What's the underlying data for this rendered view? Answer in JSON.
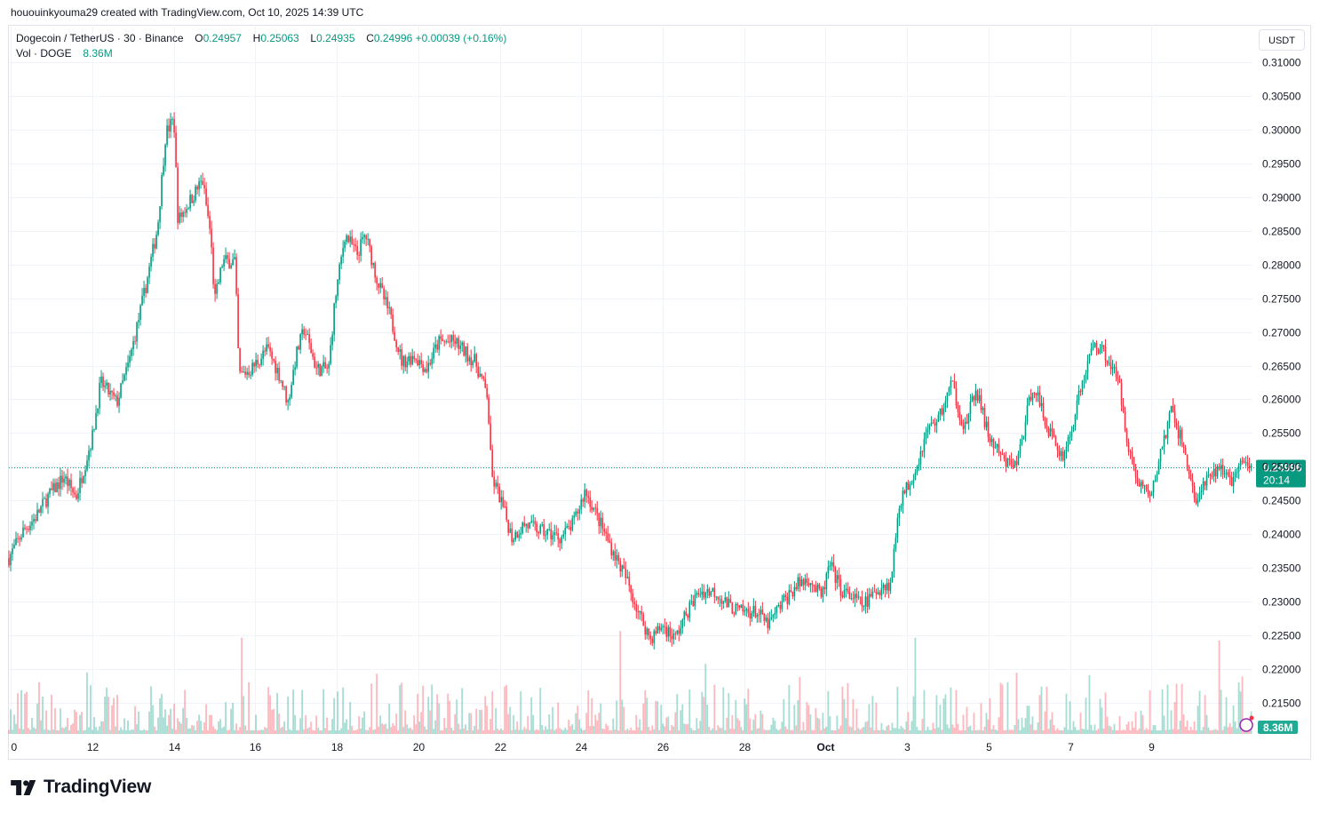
{
  "header": {
    "credit": "hououinkyouma29 created with TradingView.com, Oct 10, 2025 14:39 UTC"
  },
  "legend": {
    "symbol": "Dogecoin / TetherUS · 30 · Binance",
    "o_label": "O",
    "o_value": "0.24957",
    "h_label": "H",
    "h_value": "0.25063",
    "l_label": "L",
    "l_value": "0.24935",
    "c_label": "C",
    "c_value": "0.24996",
    "change": "+0.00039 (+0.16%)",
    "vol_label": "Vol · DOGE",
    "vol_value": "8.36M"
  },
  "toolbar": {
    "currency_label": "USDT"
  },
  "footer": {
    "brand": "TradingView"
  },
  "colors": {
    "up": "#089981",
    "down": "#f23645",
    "grid": "#f0f3fa",
    "axis_text": "#131722",
    "price_line": "#089981",
    "volume_badge": "#22ab94",
    "alert": "#9c27b0"
  },
  "chart_data": {
    "type": "candlestick",
    "ylim": [
      0.2125,
      0.3125
    ],
    "y_ticks": [
      "0.31000",
      "0.30500",
      "0.30000",
      "0.29500",
      "0.29000",
      "0.28500",
      "0.28000",
      "0.27500",
      "0.27000",
      "0.26500",
      "0.26000",
      "0.25500",
      "0.25000",
      "0.24500",
      "0.24000",
      "0.23500",
      "0.23000",
      "0.22500",
      "0.22000",
      "0.21500"
    ],
    "y_tick_values": [
      0.31,
      0.305,
      0.3,
      0.295,
      0.29,
      0.285,
      0.28,
      0.275,
      0.27,
      0.265,
      0.26,
      0.255,
      0.25,
      0.245,
      0.24,
      0.235,
      0.23,
      0.225,
      0.22,
      0.215
    ],
    "x_ticks": [
      "0",
      "12",
      "14",
      "16",
      "18",
      "20",
      "22",
      "24",
      "26",
      "28",
      "Oct",
      "3",
      "5",
      "7",
      "9"
    ],
    "x_tick_days": [
      10,
      12,
      14,
      16,
      18,
      20,
      22,
      24,
      26,
      28,
      30,
      32,
      34,
      36,
      38
    ],
    "x_range_days": [
      9.95,
      39.5
    ],
    "grid": true,
    "last_price": 0.24996,
    "last_price_label": "0.24996",
    "countdown_label": "20:14",
    "volume_label": "8.36M",
    "price_path": [
      [
        9.95,
        0.2365
      ],
      [
        10.3,
        0.2405
      ],
      [
        10.6,
        0.2425
      ],
      [
        10.9,
        0.2455
      ],
      [
        11.3,
        0.2485
      ],
      [
        11.6,
        0.2455
      ],
      [
        12.0,
        0.2545
      ],
      [
        12.2,
        0.2625
      ],
      [
        12.6,
        0.2595
      ],
      [
        12.9,
        0.2655
      ],
      [
        13.3,
        0.2765
      ],
      [
        13.6,
        0.2855
      ],
      [
        13.8,
        0.2995
      ],
      [
        14.0,
        0.3015
      ],
      [
        14.1,
        0.2865
      ],
      [
        14.4,
        0.2895
      ],
      [
        14.7,
        0.2925
      ],
      [
        14.9,
        0.2845
      ],
      [
        15.0,
        0.2745
      ],
      [
        15.2,
        0.2805
      ],
      [
        15.5,
        0.2805
      ],
      [
        15.6,
        0.2635
      ],
      [
        15.9,
        0.2645
      ],
      [
        16.3,
        0.2675
      ],
      [
        16.6,
        0.2635
      ],
      [
        16.8,
        0.2595
      ],
      [
        17.0,
        0.2665
      ],
      [
        17.2,
        0.2705
      ],
      [
        17.5,
        0.2645
      ],
      [
        17.8,
        0.2645
      ],
      [
        17.95,
        0.2745
      ],
      [
        18.2,
        0.2845
      ],
      [
        18.5,
        0.2815
      ],
      [
        18.7,
        0.2845
      ],
      [
        19.0,
        0.2775
      ],
      [
        19.3,
        0.2725
      ],
      [
        19.6,
        0.2655
      ],
      [
        19.9,
        0.2665
      ],
      [
        20.2,
        0.2645
      ],
      [
        20.5,
        0.2685
      ],
      [
        20.9,
        0.2685
      ],
      [
        21.4,
        0.2655
      ],
      [
        21.7,
        0.2605
      ],
      [
        21.8,
        0.2485
      ],
      [
        22.0,
        0.2455
      ],
      [
        22.3,
        0.2395
      ],
      [
        22.6,
        0.2415
      ],
      [
        23.0,
        0.2405
      ],
      [
        23.5,
        0.2395
      ],
      [
        23.8,
        0.2415
      ],
      [
        24.1,
        0.2465
      ],
      [
        24.4,
        0.2425
      ],
      [
        24.7,
        0.2385
      ],
      [
        25.1,
        0.2335
      ],
      [
        25.4,
        0.2285
      ],
      [
        25.7,
        0.2245
      ],
      [
        26.0,
        0.2265
      ],
      [
        26.3,
        0.2245
      ],
      [
        26.6,
        0.2285
      ],
      [
        26.9,
        0.2315
      ],
      [
        27.3,
        0.2315
      ],
      [
        27.6,
        0.2295
      ],
      [
        27.9,
        0.2285
      ],
      [
        28.3,
        0.2285
      ],
      [
        28.6,
        0.2265
      ],
      [
        28.9,
        0.2295
      ],
      [
        29.3,
        0.2325
      ],
      [
        29.6,
        0.2335
      ],
      [
        29.9,
        0.2305
      ],
      [
        30.1,
        0.2355
      ],
      [
        30.4,
        0.2315
      ],
      [
        30.7,
        0.2305
      ],
      [
        30.9,
        0.2295
      ],
      [
        31.1,
        0.2305
      ],
      [
        31.4,
        0.2325
      ],
      [
        31.6,
        0.2325
      ],
      [
        31.8,
        0.2445
      ],
      [
        32.2,
        0.2495
      ],
      [
        32.5,
        0.2555
      ],
      [
        32.8,
        0.2575
      ],
      [
        33.1,
        0.2625
      ],
      [
        33.4,
        0.2555
      ],
      [
        33.7,
        0.2615
      ],
      [
        34.0,
        0.2545
      ],
      [
        34.4,
        0.2505
      ],
      [
        34.7,
        0.2505
      ],
      [
        34.9,
        0.2565
      ],
      [
        35.1,
        0.2625
      ],
      [
        35.4,
        0.2565
      ],
      [
        35.8,
        0.2515
      ],
      [
        36.0,
        0.2545
      ],
      [
        36.3,
        0.2625
      ],
      [
        36.6,
        0.2685
      ],
      [
        36.9,
        0.2665
      ],
      [
        37.2,
        0.2625
      ],
      [
        37.4,
        0.2545
      ],
      [
        37.6,
        0.2485
      ],
      [
        38.0,
        0.2455
      ],
      [
        38.2,
        0.2515
      ],
      [
        38.5,
        0.2585
      ],
      [
        38.8,
        0.2525
      ],
      [
        39.1,
        0.2445
      ],
      [
        39.3,
        0.2475
      ],
      [
        39.5,
        0.2485
      ],
      [
        39.7,
        0.2505
      ],
      [
        39.9,
        0.2475
      ],
      [
        40.1,
        0.2495
      ],
      [
        40.3,
        0.2505
      ],
      [
        40.45,
        0.24996
      ]
    ]
  }
}
